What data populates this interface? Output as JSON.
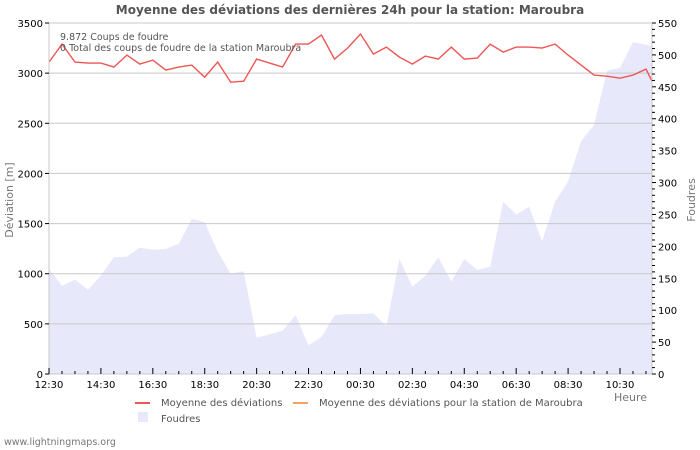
{
  "title": "Moyenne des déviations des dernières 24h pour la station: Maroubra",
  "info": {
    "line1": "9.872  Coups de foudre",
    "line2": "0 Total des coups de foudre de la station Maroubra"
  },
  "footer": "www.lightningmaps.org",
  "legend": [
    {
      "label": "Moyenne des déviations",
      "color": "#ee5555",
      "type": "line"
    },
    {
      "label": "Moyenne des déviations pour la station de Maroubra",
      "color": "#f4a460",
      "type": "line"
    },
    {
      "label": "Foudres",
      "color": "#e8e8fb",
      "type": "area"
    }
  ],
  "chart_data": {
    "type": "line",
    "title": "Moyenne des déviations des dernières 24h pour la station: Maroubra",
    "xlabel": "Heure",
    "ylabel": "Déviation  [m]",
    "y2label": "Foudres",
    "ylim": [
      0,
      3500
    ],
    "y2lim": [
      0,
      550
    ],
    "grid": true,
    "x_tick_labels": [
      "12:30",
      "14:30",
      "16:30",
      "18:30",
      "20:30",
      "22:30",
      "00:30",
      "02:30",
      "04:30",
      "06:30",
      "08:30",
      "10:30"
    ],
    "y_tick_labels": [
      "0",
      "500",
      "1000",
      "1500",
      "2000",
      "2500",
      "3000",
      "3500"
    ],
    "y2_tick_labels": [
      "0",
      "50",
      "100",
      "150",
      "200",
      "250",
      "300",
      "350",
      "400",
      "450",
      "500",
      "550"
    ],
    "x": [
      "12:30",
      "13:00",
      "13:30",
      "14:00",
      "14:30",
      "15:00",
      "15:30",
      "16:00",
      "16:30",
      "17:00",
      "17:30",
      "18:00",
      "18:30",
      "19:00",
      "19:30",
      "20:00",
      "20:30",
      "21:00",
      "21:30",
      "22:00",
      "22:30",
      "23:00",
      "23:30",
      "00:00",
      "00:30",
      "01:00",
      "01:30",
      "02:00",
      "02:30",
      "03:00",
      "03:30",
      "04:00",
      "04:30",
      "05:00",
      "05:30",
      "06:00",
      "06:30",
      "07:00",
      "07:30",
      "08:00",
      "08:30",
      "09:00",
      "09:30",
      "10:00",
      "10:30",
      "11:00",
      "11:30",
      "11:45"
    ],
    "series": [
      {
        "name": "Moyenne des déviations",
        "axis": "left",
        "color": "#ee5555",
        "values": [
          3110,
          3290,
          3110,
          3100,
          3100,
          3060,
          3180,
          3090,
          3130,
          3030,
          3060,
          3080,
          2960,
          3110,
          2910,
          2920,
          3140,
          3100,
          3060,
          3290,
          3290,
          3380,
          3140,
          3250,
          3390,
          3190,
          3260,
          3160,
          3090,
          3170,
          3140,
          3260,
          3140,
          3150,
          3290,
          3210,
          3260,
          3260,
          3250,
          3290,
          3180,
          3080,
          2980,
          2970,
          2950,
          2980,
          3040,
          2920
        ]
      },
      {
        "name": "Moyenne des déviations pour la station de Maroubra",
        "axis": "left",
        "color": "#f4a460",
        "values": []
      },
      {
        "name": "Foudres",
        "axis": "right",
        "color": "#e8e8fb",
        "type": "area",
        "values": [
          165,
          138,
          148,
          132,
          154,
          183,
          184,
          198,
          195,
          196,
          204,
          243,
          238,
          192,
          157,
          161,
          57,
          62,
          68,
          92,
          45,
          58,
          92,
          94,
          94,
          95,
          75,
          180,
          137,
          154,
          183,
          145,
          180,
          163,
          168,
          270,
          250,
          262,
          208,
          270,
          302,
          365,
          390,
          475,
          480,
          520,
          516,
          514
        ]
      }
    ]
  }
}
